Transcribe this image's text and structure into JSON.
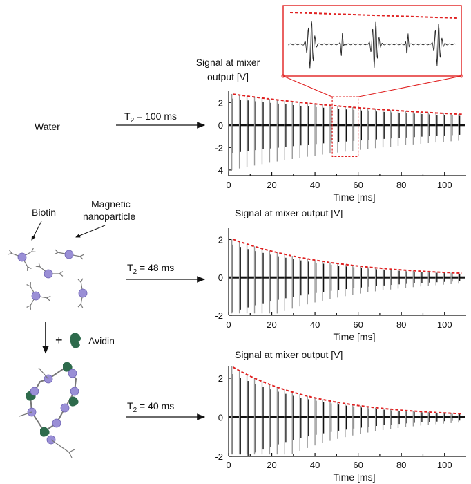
{
  "samples": [
    {
      "id": "water",
      "label": "Water",
      "t2_label": "T",
      "t2_sub": "2",
      "t2_value": " = 100 ms"
    },
    {
      "id": "biotin",
      "t2_label": "T",
      "t2_sub": "2",
      "t2_value": " = 48 ms"
    },
    {
      "id": "avidin",
      "t2_label": "T",
      "t2_sub": "2",
      "t2_value": " = 40 ms"
    }
  ],
  "schematic": {
    "biotin_label": "Biotin",
    "magnetic_label_line1": "Magnetic",
    "magnetic_label_line2": "nanoparticle",
    "plus": "+",
    "avidin_label": "Avidin"
  },
  "colors": {
    "signal": "#111111",
    "envelope": "#e02020",
    "nanoparticle": "#9a8fd6",
    "avidin": "#2e6b4c",
    "linker": "#777777"
  },
  "chart_data": [
    {
      "type": "line",
      "title_line1": "Signal at mixer",
      "title_line2": "output [V]",
      "xlabel": "Time [ms]",
      "xlim": [
        0,
        110
      ],
      "ylim": [
        -4.5,
        3
      ],
      "xticks": [
        "0",
        "20",
        "40",
        "60",
        "80",
        "100"
      ],
      "yticks": [
        "-4",
        "-2",
        "0",
        "2"
      ],
      "echo_spacing_ms": 3.5,
      "t2_ms": 100,
      "envelope_start_v": 2.8,
      "highlight_box_ms": [
        48,
        60
      ],
      "inset": true
    },
    {
      "type": "line",
      "title": "Signal at mixer output [V]",
      "xlabel": "Time [ms]",
      "xlim": [
        0,
        110
      ],
      "ylim": [
        -2,
        2.6
      ],
      "xticks": [
        "0",
        "20",
        "40",
        "60",
        "80",
        "100"
      ],
      "yticks": [
        "-2",
        "0",
        "2"
      ],
      "echo_spacing_ms": 3.5,
      "t2_ms": 48,
      "envelope_start_v": 2.1
    },
    {
      "type": "line",
      "title": "Signal at mixer output [V]",
      "xlabel": "Time [ms]",
      "xlim": [
        0,
        110
      ],
      "ylim": [
        -2,
        2.6
      ],
      "xticks": [
        "0",
        "20",
        "40",
        "60",
        "80",
        "100"
      ],
      "yticks": [
        "-2",
        "0",
        "2"
      ],
      "echo_spacing_ms": 3.5,
      "t2_ms": 40,
      "envelope_start_v": 2.7
    }
  ]
}
